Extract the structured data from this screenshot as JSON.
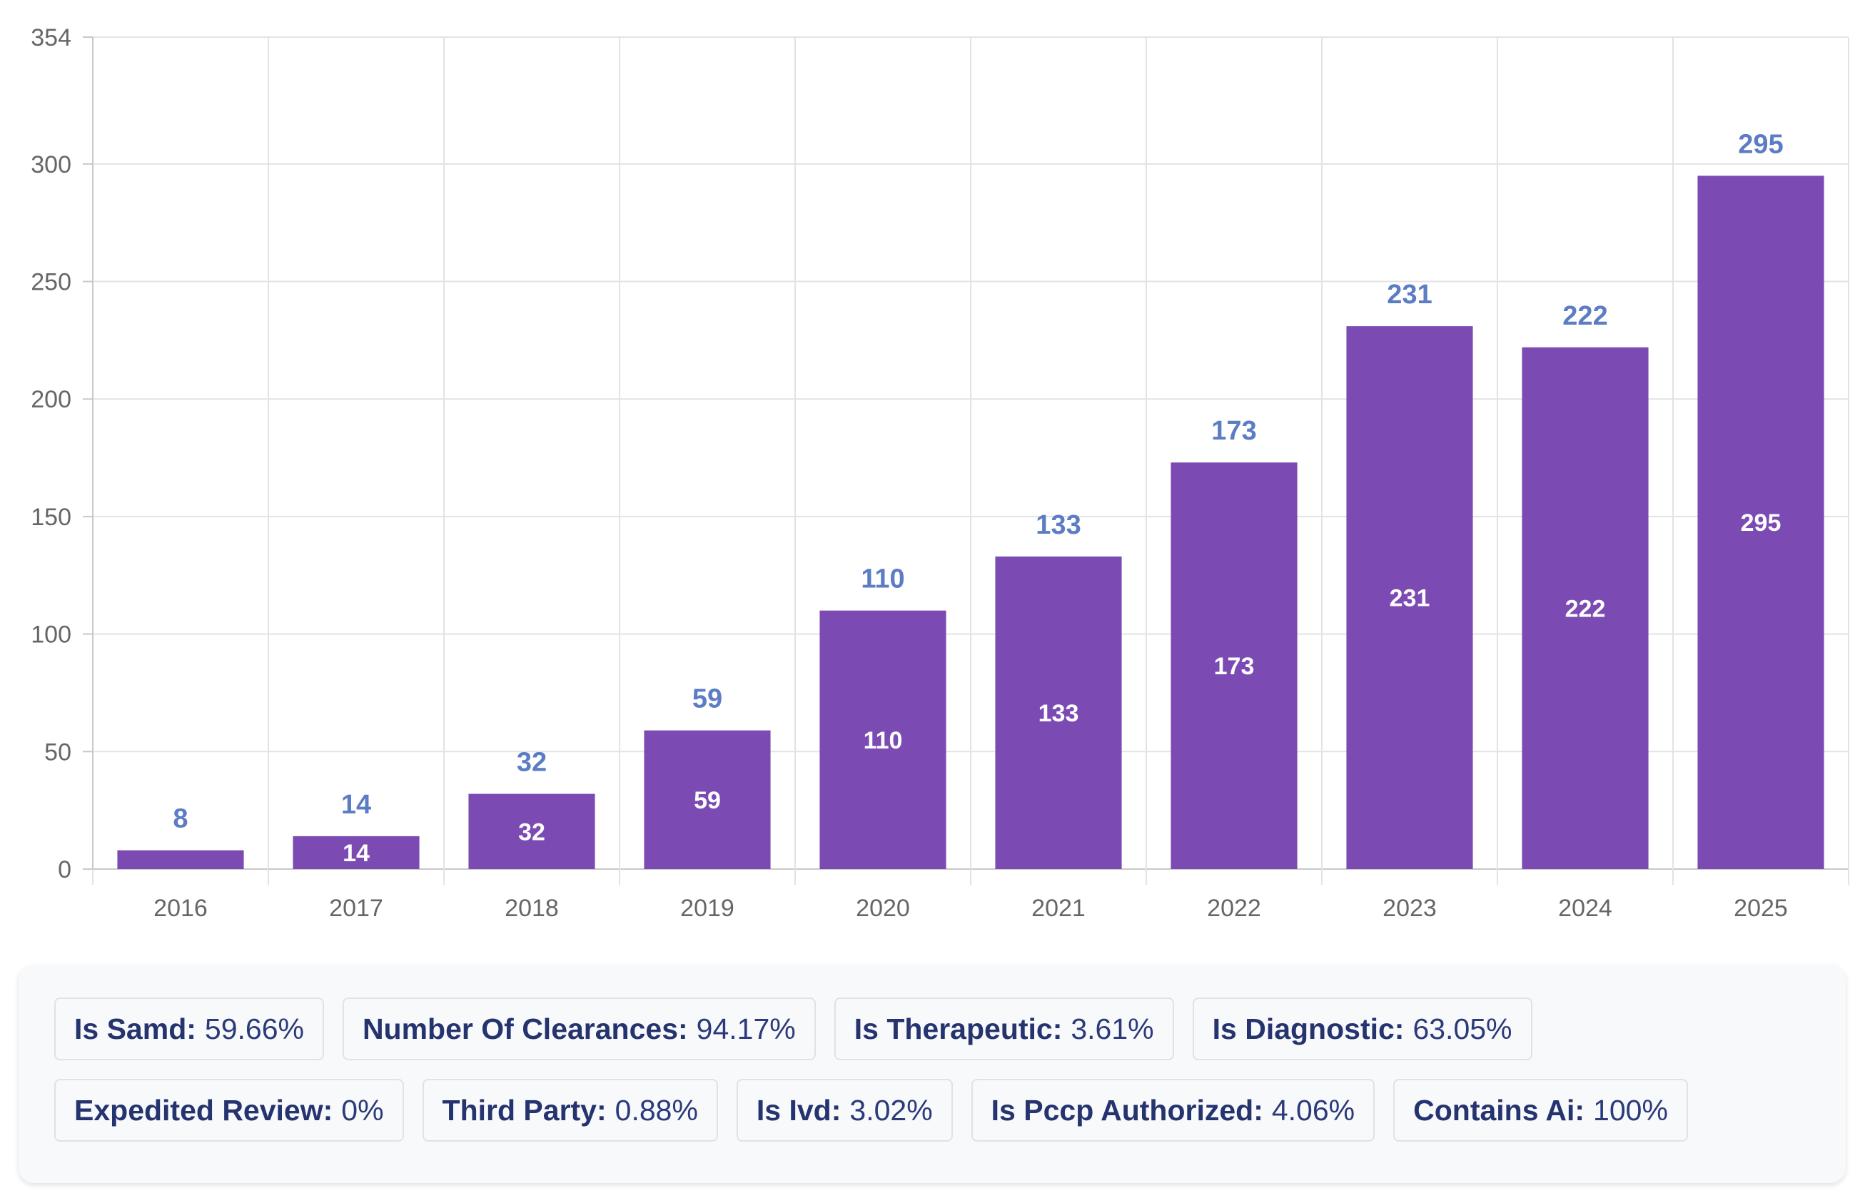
{
  "chart_data": {
    "type": "bar",
    "categories": [
      "2016",
      "2017",
      "2018",
      "2019",
      "2020",
      "2021",
      "2022",
      "2023",
      "2024",
      "2025"
    ],
    "values": [
      8,
      14,
      32,
      59,
      110,
      133,
      173,
      231,
      222,
      295
    ],
    "title": "",
    "xlabel": "",
    "ylabel": "",
    "ylim": [
      0,
      354
    ],
    "yticks": [
      0,
      50,
      100,
      150,
      200,
      250,
      300,
      354
    ],
    "grid": true,
    "bar_color": "#7b4bb3",
    "outside_label_color": "#5c7cc4",
    "inside_label_color": "#ffffff",
    "show_inside_labels": [
      false,
      true,
      true,
      true,
      true,
      true,
      true,
      true,
      true,
      true
    ]
  },
  "stats": {
    "rows": [
      [
        {
          "key": "Is Samd:",
          "value": "59.66%"
        },
        {
          "key": "Number Of Clearances:",
          "value": "94.17%"
        },
        {
          "key": "Is Therapeutic:",
          "value": "3.61%"
        },
        {
          "key": "Is Diagnostic:",
          "value": "63.05%"
        }
      ],
      [
        {
          "key": "Expedited Review:",
          "value": "0%"
        },
        {
          "key": "Third Party:",
          "value": "0.88%"
        },
        {
          "key": "Is Ivd:",
          "value": "3.02%"
        },
        {
          "key": "Is Pccp Authorized:",
          "value": "4.06%"
        },
        {
          "key": "Contains Ai:",
          "value": "100%"
        }
      ]
    ]
  }
}
